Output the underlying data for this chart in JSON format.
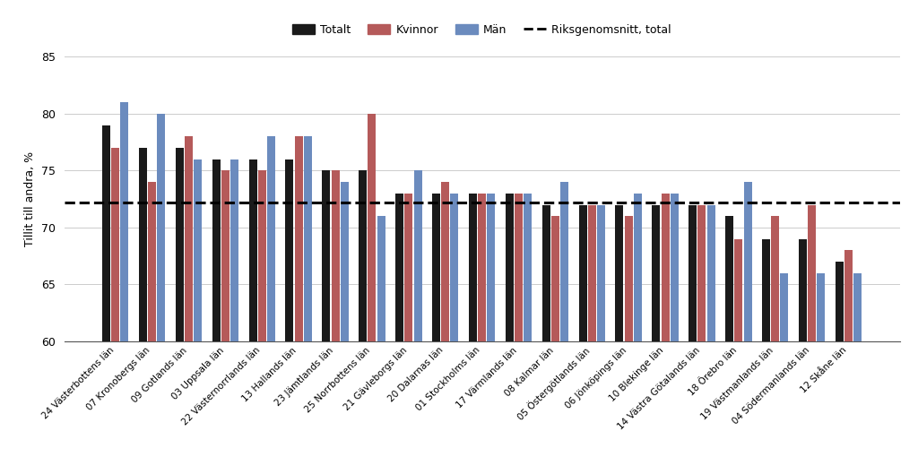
{
  "categories": [
    "24 Västerbottens län",
    "07 Kronobergs län",
    "09 Gotlands län",
    "03 Uppsala län",
    "22 Västernorrlands län",
    "13 Hallands län",
    "23 Jämtlands län",
    "25 Norrbottens län",
    "21 Gävleborgs län",
    "20 Dalarnas län",
    "01 Stockholms län",
    "17 Värmlands län",
    "08 Kalmar län",
    "05 Östergötlands län",
    "06 Jönköpings län",
    "10 Blekinge län",
    "14 Västra Götalands län",
    "18 Örebro län",
    "19 Västmanlands län",
    "04 Södermanlands län",
    "12 Skåne län"
  ],
  "totalt": [
    79,
    77,
    77,
    76,
    76,
    76,
    75,
    75,
    73,
    73,
    73,
    73,
    72,
    72,
    72,
    72,
    72,
    71,
    69,
    69,
    67
  ],
  "kvinnor": [
    77,
    74,
    78,
    75,
    75,
    78,
    75,
    80,
    73,
    74,
    73,
    73,
    71,
    72,
    71,
    73,
    72,
    69,
    71,
    72,
    68
  ],
  "man": [
    81,
    80,
    76,
    76,
    78,
    78,
    74,
    71,
    75,
    73,
    73,
    73,
    74,
    72,
    73,
    73,
    72,
    74,
    66,
    66,
    66
  ],
  "riksgenomsnitt": 72.2,
  "ylabel": "Tillit till andra, %",
  "ylim": [
    60,
    85
  ],
  "yticks": [
    60,
    65,
    70,
    75,
    80,
    85
  ],
  "color_totalt": "#1a1a1a",
  "color_kvinnor": "#B55A5A",
  "color_man": "#6B8BBE",
  "color_riksgenomsnitt": "#000000",
  "legend_totalt": "Totalt",
  "legend_kvinnor": "Kvinnor",
  "legend_man": "Män",
  "legend_riksgenomsnitt": "Riksgenomsnitt, total"
}
